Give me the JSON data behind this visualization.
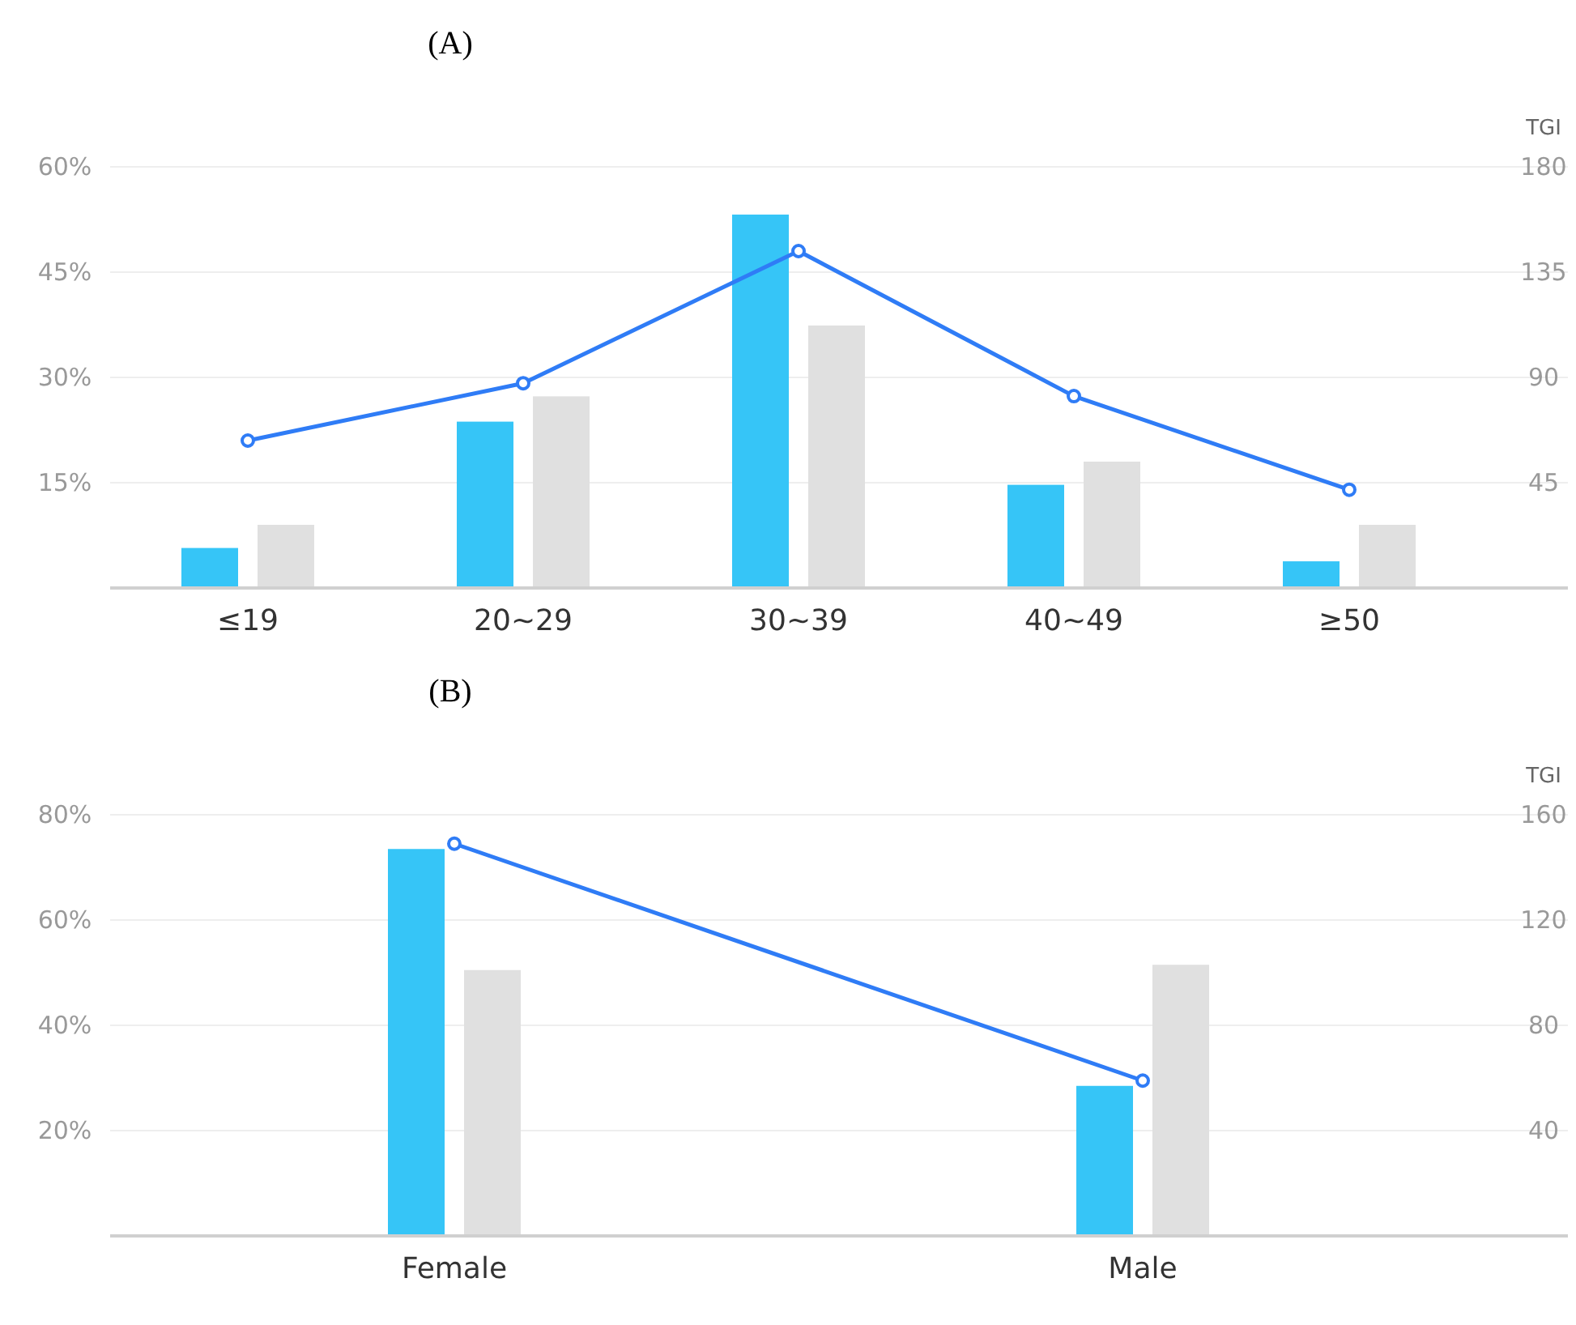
{
  "chart_data": [
    {
      "type": "bar",
      "title": "(A)",
      "y2label": "TGI",
      "categories": [
        "≤19",
        "20~29",
        "30~39",
        "40~49",
        "≥50"
      ],
      "grid": "y",
      "ylim": [
        0,
        60
      ],
      "yticks": [
        {
          "value": 15,
          "label": "15%"
        },
        {
          "value": 30,
          "label": "30%"
        },
        {
          "value": 45,
          "label": "45%"
        },
        {
          "value": 60,
          "label": "60%"
        }
      ],
      "y2lim": [
        0,
        180
      ],
      "y2ticks": [
        45,
        90,
        135,
        180
      ],
      "series": [
        {
          "color": "#36c5f7",
          "values": [
            5.7,
            23.7,
            53.2,
            14.7,
            3.8
          ]
        },
        {
          "color": "#e0e0e0",
          "values": [
            9,
            27.3,
            37.4,
            18,
            9
          ]
        },
        {
          "type": "line",
          "axis": "y2",
          "color": "#2f7cf6",
          "marker": "circle",
          "values": [
            63,
            87.5,
            144,
            82,
            42
          ]
        }
      ]
    },
    {
      "type": "bar",
      "title": "(B)",
      "y2label": "TGI",
      "categories": [
        "Female",
        "Male"
      ],
      "grid": "y",
      "ylim": [
        0,
        80
      ],
      "yticks": [
        {
          "value": 20,
          "label": "20%"
        },
        {
          "value": 40,
          "label": "40%"
        },
        {
          "value": 60,
          "label": "60%"
        },
        {
          "value": 80,
          "label": "80%"
        }
      ],
      "y2lim": [
        0,
        160
      ],
      "y2ticks": [
        40,
        80,
        120,
        160
      ],
      "series": [
        {
          "color": "#36c5f7",
          "values": [
            73.5,
            28.5
          ]
        },
        {
          "color": "#e0e0e0",
          "values": [
            50.5,
            51.5
          ]
        },
        {
          "type": "line",
          "axis": "y2",
          "color": "#2f7cf6",
          "marker": "circle",
          "values": [
            149,
            59
          ]
        }
      ]
    }
  ]
}
